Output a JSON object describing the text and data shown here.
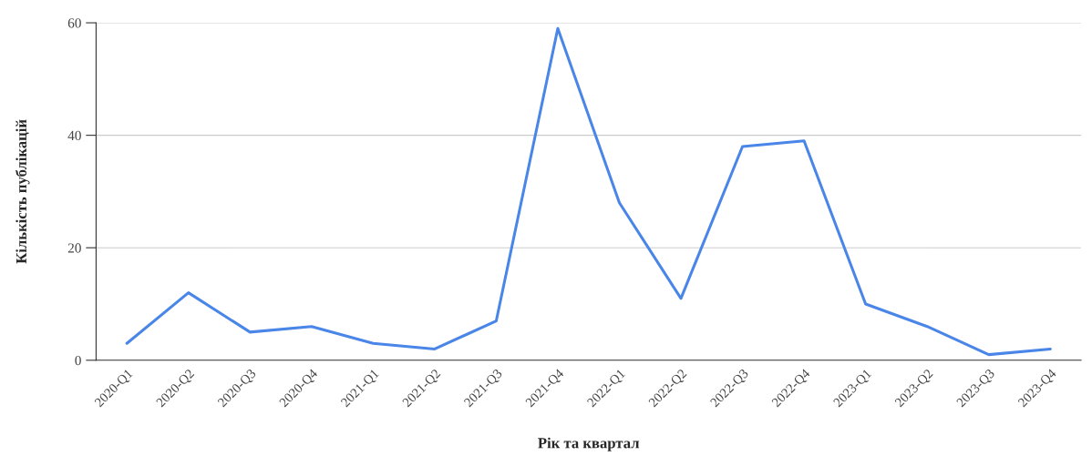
{
  "chart_data": {
    "type": "line",
    "xlabel": "Рік та квартал",
    "ylabel": "Кількість публікацій",
    "categories": [
      "2020-Q1",
      "2020-Q2",
      "2020-Q3",
      "2020-Q4",
      "2021-Q1",
      "2021-Q2",
      "2021-Q3",
      "2021-Q4",
      "2022-Q1",
      "2022-Q2",
      "2022-Q3",
      "2022-Q4",
      "2023-Q1",
      "2023-Q2",
      "2023-Q3",
      "2023-Q4"
    ],
    "series": [
      {
        "color": "#4a86e8",
        "values": [
          3,
          12,
          5,
          6,
          3,
          2,
          7,
          59,
          28,
          11,
          38,
          39,
          10,
          6,
          1,
          2
        ]
      }
    ],
    "ylim": [
      0,
      60
    ],
    "yticks": [
      0,
      20,
      40,
      60
    ],
    "grid": "y",
    "marker": "none",
    "line_style": "solid"
  }
}
